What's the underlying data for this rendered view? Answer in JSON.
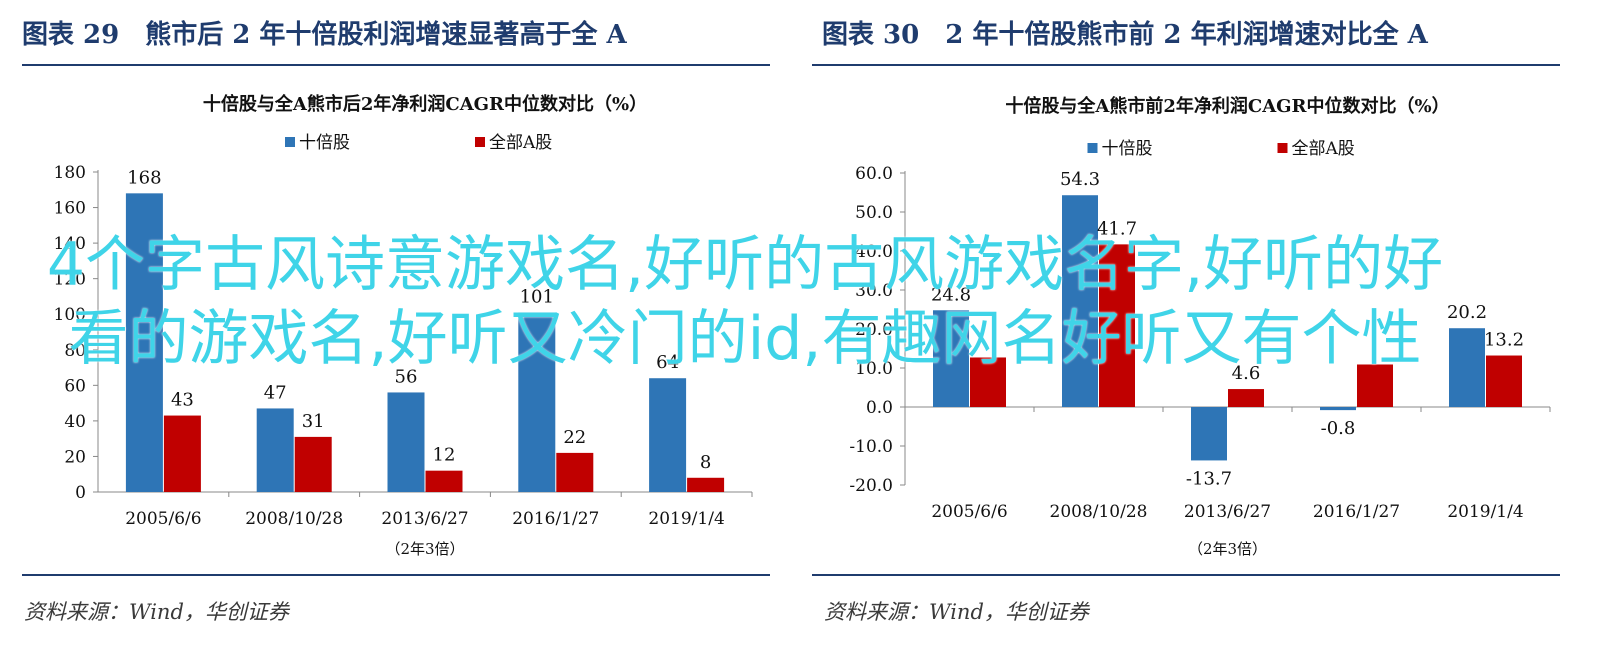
{
  "panels": [
    {
      "figure_title": "图表 29　熊市后 2 年十倍股利润增速显著高于全 A",
      "source": "资料来源：Wind，华创证券"
    },
    {
      "figure_title": "图表 30　2 年十倍股熊市前 2 年利润增速对比全 A",
      "source": "资料来源：Wind，华创证券"
    }
  ],
  "overlay_text": "4个字古风诗意游戏名,好听的古风游戏名字,好听的好看的游戏名,好听又冷门的id,有趣网名好听又有个性",
  "colors": {
    "series_1": "#2e75b6",
    "series_2": "#c00000",
    "title_accent": "#1f3c6e"
  },
  "chart_data": [
    {
      "type": "bar",
      "title": "十倍股与全A熊市后2年净利润CAGR中位数对比（%）",
      "categories": [
        "2005/6/6",
        "2008/10/28",
        "2013/6/27",
        "2016/1/27",
        "2019/1/4"
      ],
      "series": [
        {
          "name": "十倍股",
          "values": [
            168,
            47,
            56,
            101,
            64
          ],
          "labels": [
            "168",
            "47",
            "56",
            "101",
            "64"
          ]
        },
        {
          "name": "全部A股",
          "values": [
            43,
            31,
            12,
            22,
            8
          ],
          "labels": [
            "43",
            "31",
            "12",
            "22",
            "8"
          ]
        }
      ],
      "yticks": [
        "0",
        "20",
        "40",
        "60",
        "80",
        "100",
        "120",
        "140",
        "160",
        "180"
      ],
      "ylim": [
        0,
        180
      ],
      "xlabel": "（2年3倍）",
      "legend": "top-center",
      "grid": false
    },
    {
      "type": "bar",
      "title": "十倍股与全A熊市前2年净利润CAGR中位数对比（%）",
      "categories": [
        "2005/6/6",
        "2008/10/28",
        "2013/6/27",
        "2016/1/27",
        "2019/1/4"
      ],
      "series": [
        {
          "name": "十倍股",
          "values": [
            24.8,
            54.3,
            -13.7,
            -0.8,
            20.2
          ],
          "labels": [
            "24.8",
            "54.3",
            "-13.7",
            "-0.8",
            "20.2"
          ]
        },
        {
          "name": "全部A股",
          "values": [
            12.7,
            41.7,
            4.6,
            10.9,
            13.2
          ],
          "labels": [
            "",
            "41.7",
            "4.6",
            "",
            "13.2"
          ]
        }
      ],
      "yticks": [
        "-20.0",
        "-10.0",
        "0.0",
        "10.0",
        "20.0",
        "30.0",
        "40.0",
        "50.0",
        "60.0"
      ],
      "ylim": [
        -20,
        60
      ],
      "xlabel": "（2年3倍）",
      "legend": "top-center",
      "grid": false
    }
  ]
}
